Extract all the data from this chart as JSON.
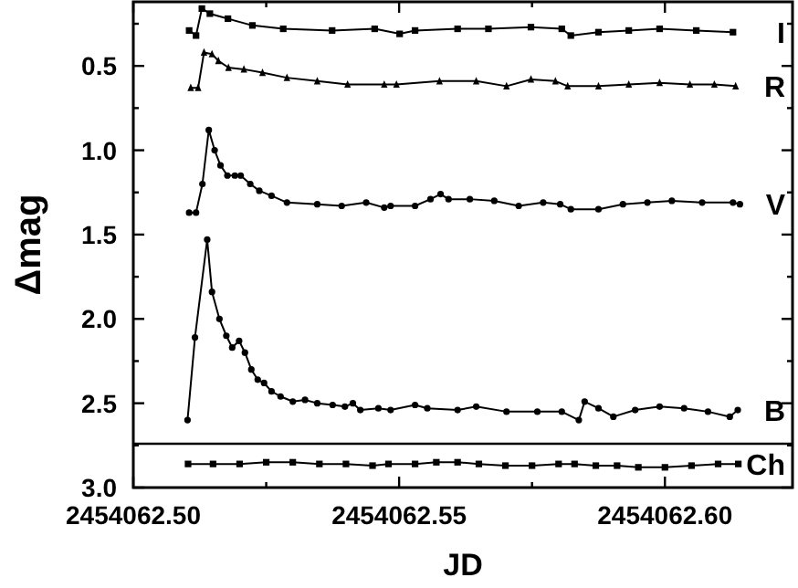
{
  "chart_data": {
    "type": "line",
    "xlabel": "JD",
    "ylabel": "Δmag",
    "xlim": [
      2454062.5,
      2454062.624
    ],
    "ylim": [
      3.0,
      0.12
    ],
    "xticks": [
      {
        "value": 2454062.5,
        "label": "2454062.50"
      },
      {
        "value": 2454062.525,
        "label": null
      },
      {
        "value": 2454062.55,
        "label": "2454062.55"
      },
      {
        "value": 2454062.575,
        "label": null
      },
      {
        "value": 2454062.6,
        "label": "2454062.60"
      }
    ],
    "yticks": [
      {
        "value": 0.25,
        "label": null
      },
      0.5,
      {
        "value": 0.75,
        "label": null
      },
      {
        "value": 1,
        "label": "1.0"
      },
      {
        "value": 1.25,
        "label": null
      },
      1.5,
      {
        "value": 1.75,
        "label": null
      },
      {
        "value": 2,
        "label": "2.0"
      },
      {
        "value": 2.25,
        "label": null
      },
      2.5,
      {
        "value": 2.75,
        "label": null
      },
      {
        "value": 3,
        "label": "3.0"
      }
    ],
    "grid": false,
    "legend": "right",
    "line_style": "solid",
    "ref_lines": [
      {
        "axis": "y",
        "value": 2.74,
        "color": "#000000"
      }
    ],
    "series": [
      {
        "name": "I",
        "color": "#000000",
        "marker": "square",
        "x": [
          2454062.5105,
          2454062.5118,
          2454062.5129,
          2454062.5144,
          2454062.5178,
          2454062.5224,
          2454062.5282,
          2454062.5374,
          2454062.5454,
          2454062.5501,
          2454062.553,
          2454062.561,
          2454062.5668,
          2454062.5748,
          2454062.5806,
          2454062.5823,
          2454062.5875,
          2454062.5932,
          2454062.599,
          2454062.6059,
          2454062.6128
        ],
        "values": [
          0.29,
          0.32,
          0.16,
          0.19,
          0.22,
          0.26,
          0.28,
          0.29,
          0.28,
          0.31,
          0.29,
          0.28,
          0.28,
          0.27,
          0.28,
          0.32,
          0.3,
          0.29,
          0.28,
          0.29,
          0.3
        ]
      },
      {
        "name": "R",
        "color": "#000000",
        "marker": "triangle",
        "x": [
          2454062.5108,
          2454062.5122,
          2454062.5133,
          2454062.5148,
          2454062.516,
          2454062.5179,
          2454062.5208,
          2454062.5243,
          2454062.5289,
          2454062.5346,
          2454062.5403,
          2454062.5472,
          2454062.5495,
          2454062.5576,
          2454062.5645,
          2454062.5702,
          2454062.5748,
          2454062.5794,
          2454062.5817,
          2454062.5875,
          2454062.5932,
          2454062.599,
          2454062.6047,
          2454062.6093,
          2454062.6133
        ],
        "values": [
          0.63,
          0.63,
          0.42,
          0.43,
          0.47,
          0.51,
          0.52,
          0.54,
          0.57,
          0.59,
          0.61,
          0.61,
          0.61,
          0.59,
          0.59,
          0.62,
          0.58,
          0.59,
          0.62,
          0.62,
          0.61,
          0.6,
          0.61,
          0.61,
          0.62
        ]
      },
      {
        "name": "V",
        "color": "#000000",
        "marker": "circle",
        "x": [
          2454062.5105,
          2454062.5118,
          2454062.513,
          2454062.5142,
          2454062.5153,
          2454062.5164,
          2454062.5177,
          2454062.5191,
          2454062.5202,
          2454062.522,
          2454062.5237,
          2454062.526,
          2454062.5289,
          2454062.5346,
          2454062.5392,
          2454062.5438,
          2454062.5472,
          2454062.5484,
          2454062.553,
          2454062.5559,
          2454062.5578,
          2454062.5593,
          2454062.5633,
          2454062.5679,
          2454062.5725,
          2454062.5771,
          2454062.5803,
          2454062.5823,
          2454062.5875,
          2454062.5921,
          2454062.5967,
          2454062.6013,
          2454062.607,
          2454062.6128,
          2454062.6141
        ],
        "values": [
          1.37,
          1.37,
          1.2,
          0.88,
          1.0,
          1.09,
          1.15,
          1.15,
          1.15,
          1.2,
          1.24,
          1.27,
          1.31,
          1.32,
          1.33,
          1.31,
          1.34,
          1.33,
          1.33,
          1.29,
          1.26,
          1.29,
          1.29,
          1.3,
          1.33,
          1.31,
          1.32,
          1.35,
          1.35,
          1.32,
          1.31,
          1.3,
          1.31,
          1.31,
          1.32
        ]
      },
      {
        "name": "B",
        "color": "#000000",
        "marker": "circle",
        "x": [
          2454062.5102,
          2454062.5116,
          2454062.5139,
          2454062.5148,
          2454062.5162,
          2454062.5175,
          2454062.5186,
          2454062.5199,
          2454062.521,
          2454062.5222,
          2454062.5234,
          2454062.5246,
          2454062.526,
          2454062.5277,
          2454062.53,
          2454062.5323,
          2454062.5346,
          2454062.5375,
          2454062.5398,
          2454062.5413,
          2454062.5427,
          2454062.5461,
          2454062.5484,
          2454062.553,
          2454062.5553,
          2454062.561,
          2454062.5645,
          2454062.5702,
          2454062.576,
          2454062.5806,
          2454062.5838,
          2454062.5849,
          2454062.5875,
          2454062.5903,
          2454062.5944,
          2454062.599,
          2454062.6036,
          2454062.6081,
          2454062.6122,
          2454062.6137
        ],
        "values": [
          2.6,
          2.11,
          1.53,
          1.84,
          2.0,
          2.1,
          2.17,
          2.13,
          2.2,
          2.3,
          2.36,
          2.38,
          2.43,
          2.46,
          2.49,
          2.48,
          2.5,
          2.51,
          2.52,
          2.5,
          2.54,
          2.53,
          2.54,
          2.51,
          2.53,
          2.54,
          2.52,
          2.55,
          2.55,
          2.55,
          2.6,
          2.49,
          2.53,
          2.58,
          2.54,
          2.52,
          2.53,
          2.55,
          2.58,
          2.54
        ]
      },
      {
        "name": "Ch",
        "color": "#000000",
        "marker": "square",
        "x": [
          2454062.5103,
          2454062.515,
          2454062.52,
          2454062.525,
          2454062.53,
          2454062.535,
          2454062.54,
          2454062.545,
          2454062.548,
          2454062.553,
          2454062.557,
          2454062.561,
          2454062.565,
          2454062.57,
          2454062.575,
          2454062.58,
          2454062.583,
          2454062.587,
          2454062.591,
          2454062.595,
          2454062.6,
          2454062.605,
          2454062.61,
          2454062.6138
        ],
        "values": [
          2.86,
          2.86,
          2.86,
          2.85,
          2.85,
          2.86,
          2.86,
          2.87,
          2.86,
          2.86,
          2.85,
          2.85,
          2.86,
          2.87,
          2.87,
          2.86,
          2.86,
          2.87,
          2.87,
          2.88,
          2.88,
          2.87,
          2.86,
          2.86
        ]
      }
    ]
  }
}
